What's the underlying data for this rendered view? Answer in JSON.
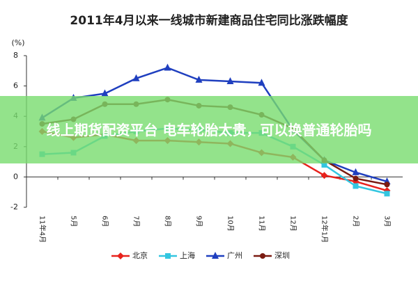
{
  "chart_data": {
    "type": "line",
    "title": "2011年4月以来一线城市新建商品住宅同比涨跌幅度",
    "y_unit": "(%)",
    "categories": [
      "11年4月",
      "5月",
      "6月",
      "7月",
      "8月",
      "9月",
      "10月",
      "11月",
      "12月",
      "12年1月",
      "2月",
      "3月"
    ],
    "series": [
      {
        "name": "北京",
        "color": "#e8221c",
        "marker": "diamond",
        "values": [
          3.0,
          2.6,
          2.8,
          2.4,
          2.4,
          2.3,
          2.2,
          1.6,
          1.3,
          0.1,
          -0.3,
          -0.9
        ]
      },
      {
        "name": "上海",
        "color": "#33c6e0",
        "marker": "square",
        "values": [
          1.5,
          1.6,
          2.7,
          3.0,
          3.2,
          3.1,
          2.9,
          2.9,
          2.0,
          0.8,
          -0.6,
          -1.1
        ]
      },
      {
        "name": "广州",
        "color": "#1f3fbf",
        "marker": "triangle",
        "values": [
          3.9,
          5.2,
          5.5,
          6.5,
          7.2,
          6.4,
          6.3,
          6.2,
          3.1,
          1.1,
          0.3,
          -0.3
        ]
      },
      {
        "name": "深圳",
        "color": "#7a1a10",
        "marker": "circle",
        "values": [
          3.5,
          3.8,
          4.8,
          4.8,
          5.1,
          4.7,
          4.6,
          4.1,
          3.2,
          1.1,
          -0.1,
          -0.5
        ]
      }
    ],
    "ylim": [
      -2,
      8
    ],
    "yticks": [
      -2,
      0,
      2,
      4,
      6,
      8
    ],
    "grid": false
  },
  "banner": {
    "text": "线上期货配资平台 电车轮胎太贵，可以换普通轮胎吗"
  }
}
